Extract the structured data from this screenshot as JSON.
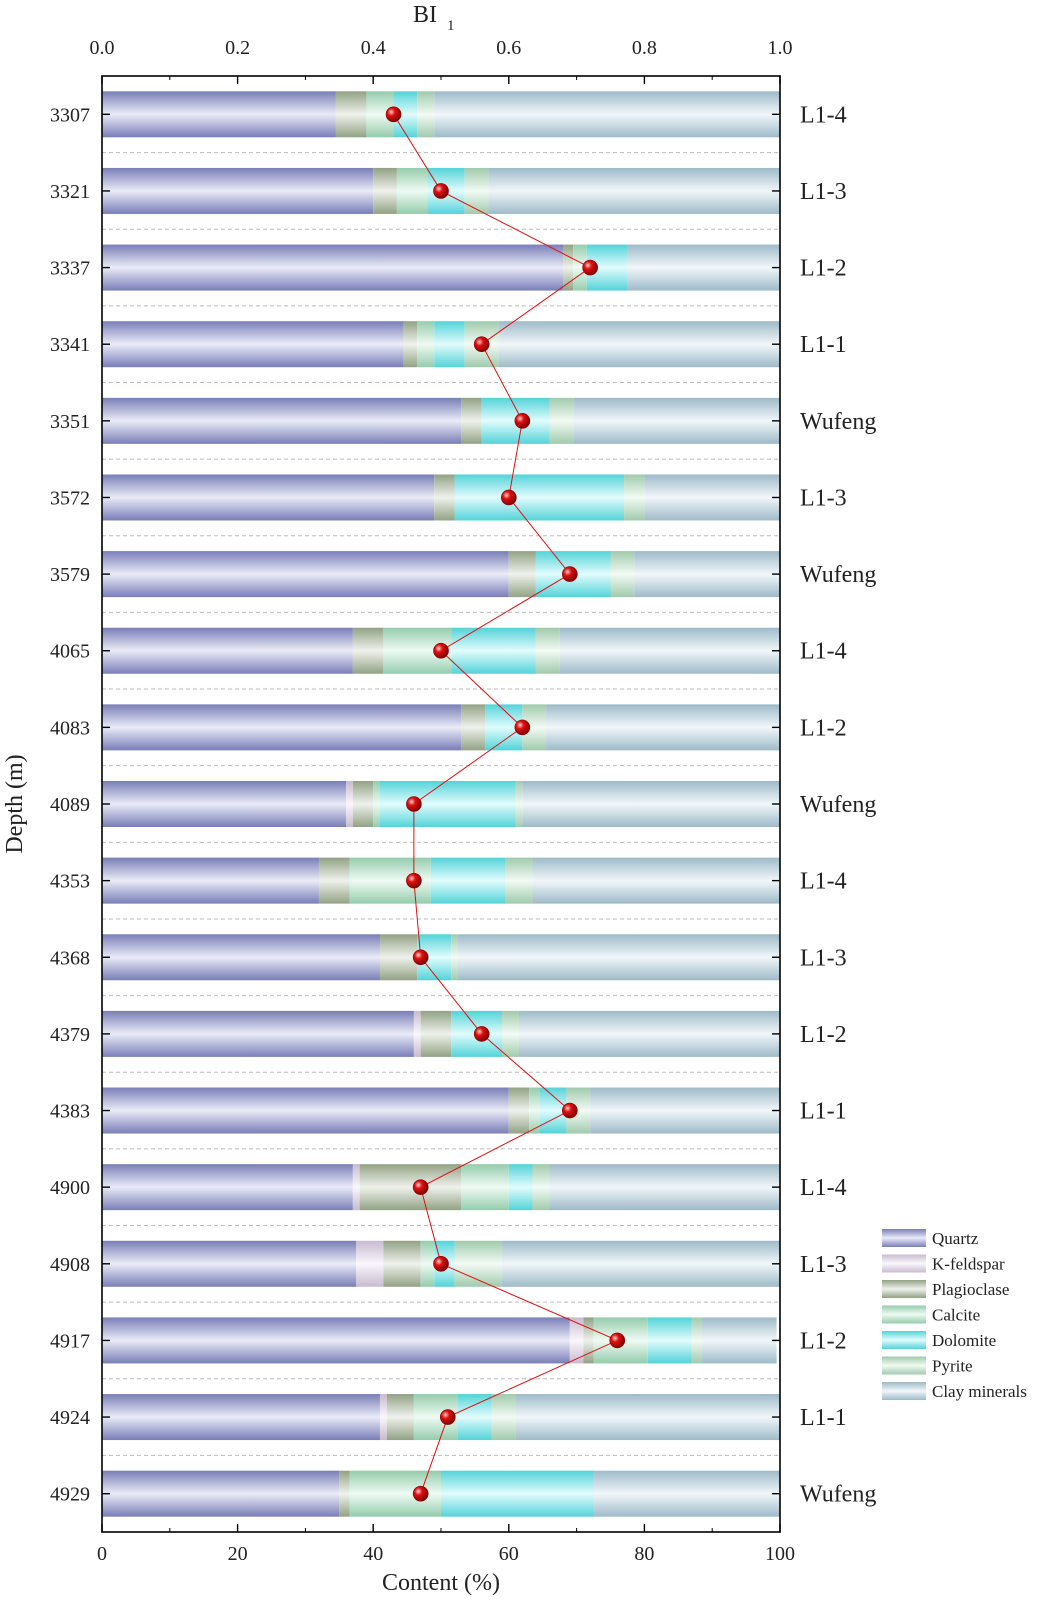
{
  "chart_data": {
    "type": "bar",
    "orientation": "horizontal",
    "stacked": true,
    "xlabel": "Content (%)",
    "ylabel": "Depth (m)",
    "top_axis_label": "BI",
    "top_axis_label_subscript": "1",
    "xlim": [
      0,
      100
    ],
    "x_ticks": [
      "0",
      "20",
      "40",
      "60",
      "80",
      "100"
    ],
    "top_xlim": [
      0,
      1
    ],
    "top_ticks": [
      "0.0",
      "0.2",
      "0.4",
      "0.6",
      "0.8",
      "1.0"
    ],
    "grid": false,
    "legend_position": "bottom-right",
    "categories": [
      "3307",
      "3321",
      "3337",
      "3341",
      "3351",
      "3572",
      "3579",
      "4065",
      "4083",
      "4089",
      "4353",
      "4368",
      "4379",
      "4383",
      "4900",
      "4908",
      "4917",
      "4924",
      "4929"
    ],
    "layer_labels": [
      "L1-4",
      "L1-3",
      "L1-2",
      "L1-1",
      "Wufeng",
      "L1-3",
      "Wufeng",
      "L1-4",
      "L1-2",
      "Wufeng",
      "L1-4",
      "L1-3",
      "L1-2",
      "L1-1",
      "L1-4",
      "L1-3",
      "L1-2",
      "L1-1",
      "Wufeng"
    ],
    "series": [
      {
        "name": "Quartz",
        "color": "#8a8fd0",
        "values": [
          34.5,
          40,
          68,
          44.5,
          53,
          49,
          60,
          37,
          53,
          36,
          32,
          41,
          46,
          60,
          37,
          37.5,
          69,
          41,
          35
        ]
      },
      {
        "name": "K-feldspar",
        "color": "#e3d3ec",
        "values": [
          0,
          0,
          0,
          0,
          0,
          0,
          0,
          0,
          0,
          1,
          0,
          0,
          1,
          0,
          1,
          4,
          2,
          1,
          0
        ]
      },
      {
        "name": "Plagioclase",
        "color": "#a6b897",
        "values": [
          4.5,
          3.5,
          1.5,
          2,
          3,
          3,
          4,
          4.5,
          3.5,
          3,
          4.5,
          5.5,
          4.5,
          3,
          15,
          5.5,
          1.5,
          4,
          1.5
        ]
      },
      {
        "name": "Calcite",
        "color": "#a8e8c4",
        "values": [
          4,
          4.5,
          2,
          2.5,
          0,
          0,
          0,
          10,
          0,
          1,
          12,
          0,
          0,
          1.5,
          7,
          2,
          8,
          6.5,
          13.5
        ]
      },
      {
        "name": "Dolomite",
        "color": "#5ef0f6",
        "values": [
          3.5,
          5.5,
          6,
          4.5,
          10,
          25,
          11,
          12.5,
          5.5,
          20,
          11,
          5,
          7.5,
          4,
          3.5,
          3,
          6.5,
          5,
          22.5
        ]
      },
      {
        "name": "Pyrite",
        "color": "#b6e6c4",
        "values": [
          2.5,
          3.5,
          0,
          5,
          3.5,
          3,
          3.5,
          3.5,
          3.5,
          1,
          4,
          1,
          2.5,
          3.5,
          2.5,
          7,
          1.5,
          3.5,
          0
        ]
      },
      {
        "name": "Clay minerals",
        "color": "#b3d3e3",
        "values": [
          51,
          43,
          22.5,
          41.5,
          30.5,
          20,
          21.5,
          32.5,
          34.5,
          38,
          36.5,
          47.5,
          38.5,
          28,
          34,
          41,
          11,
          39,
          27.5
        ]
      }
    ],
    "bi1": {
      "axis": "top",
      "marker_color": "#e01010",
      "values": [
        0.43,
        0.5,
        0.72,
        0.56,
        0.62,
        0.6,
        0.69,
        0.5,
        0.62,
        0.46,
        0.46,
        0.47,
        0.56,
        0.69,
        0.47,
        0.5,
        0.76,
        0.51,
        0.47
      ]
    }
  }
}
